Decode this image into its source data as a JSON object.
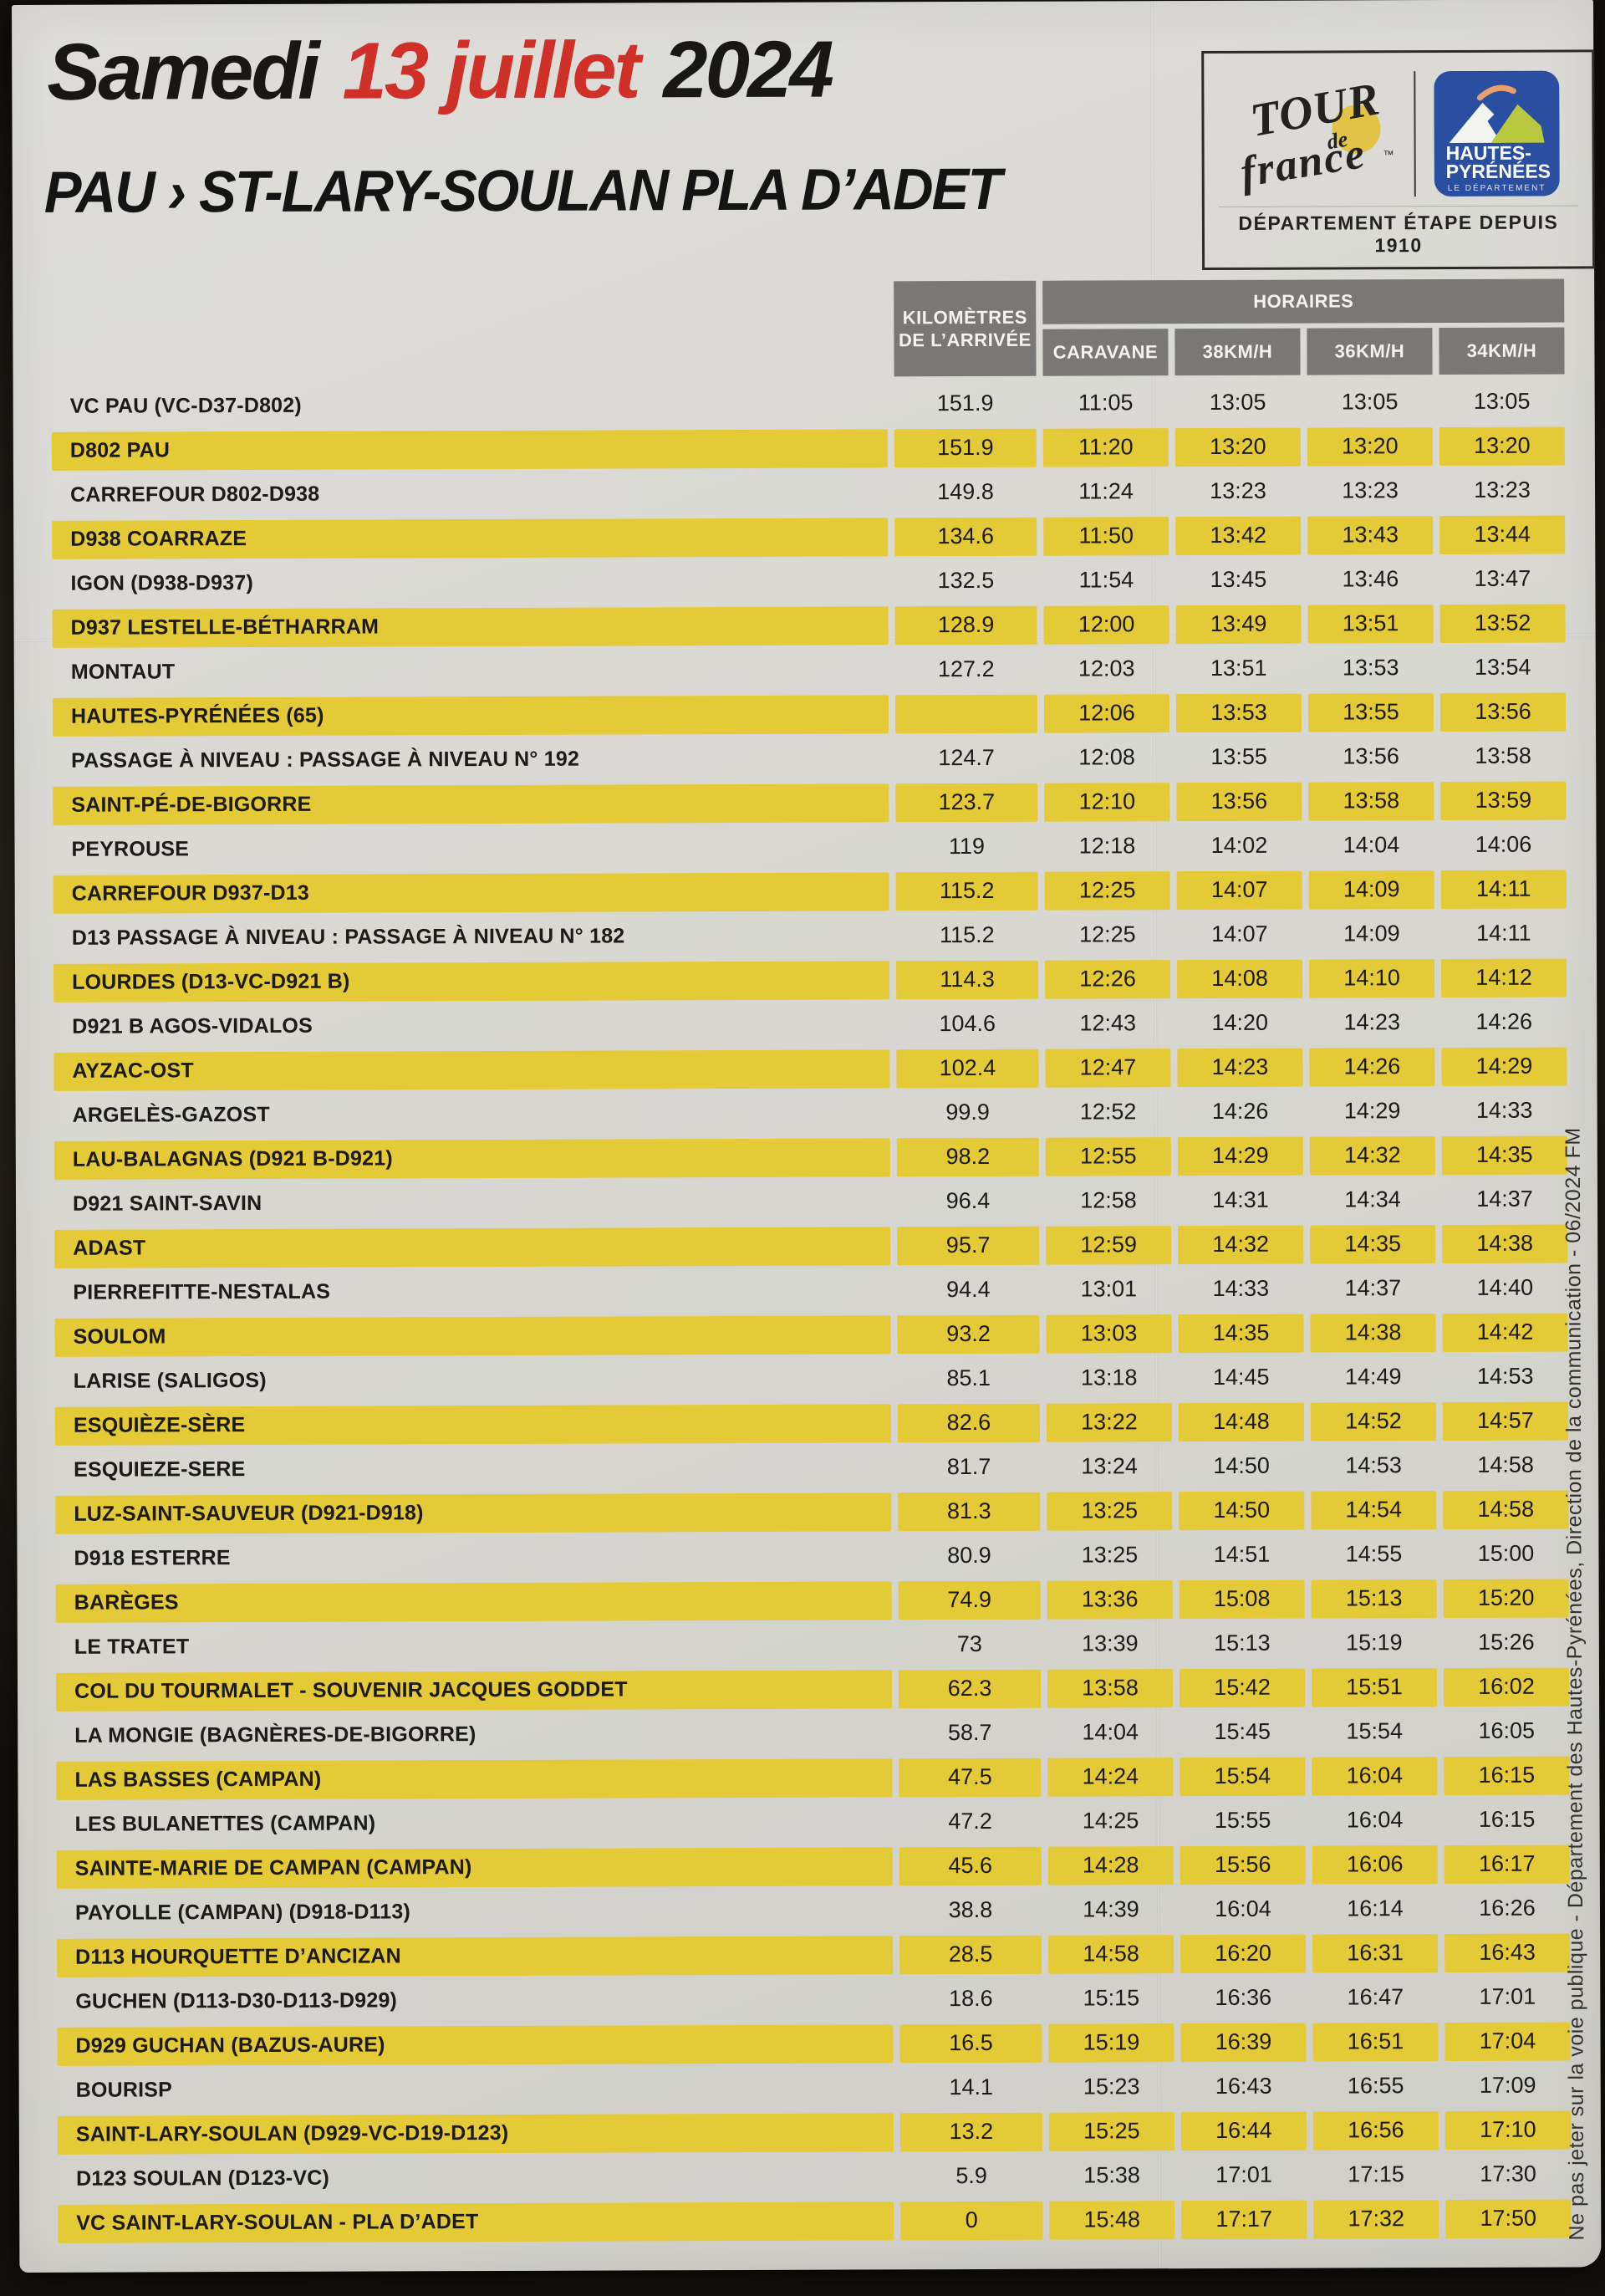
{
  "header": {
    "date_prefix": "Samedi",
    "date_red": "13 juillet",
    "date_suffix": "2024",
    "route": "PAU › ST-LARY-SOULAN PLA D’ADET"
  },
  "logos": {
    "tdf": {
      "tour": "TOUR",
      "de": "de",
      "france": "france",
      "tm": "™"
    },
    "hp": {
      "line1": "HAUTES-",
      "line2": "PYRÉNÉES",
      "line3": "LE DÉPARTEMENT"
    },
    "caption": "DÉPARTEMENT ÉTAPE DEPUIS 1910"
  },
  "table": {
    "km_header_line1": "KILOMÈTRES",
    "km_header_line2": "DE L’ARRIVÉE",
    "horaires_header": "HORAIRES",
    "speed_headers": [
      "CARAVANE",
      "38KM/H",
      "36KM/H",
      "34KM/H"
    ],
    "rows": [
      {
        "name": "VC PAU (VC-D37-D802)",
        "km": "151.9",
        "times": [
          "11:05",
          "13:05",
          "13:05",
          "13:05"
        ],
        "hl": false
      },
      {
        "name": "D802 PAU",
        "km": "151.9",
        "times": [
          "11:20",
          "13:20",
          "13:20",
          "13:20"
        ],
        "hl": true
      },
      {
        "name": "CARREFOUR D802-D938",
        "km": "149.8",
        "times": [
          "11:24",
          "13:23",
          "13:23",
          "13:23"
        ],
        "hl": false
      },
      {
        "name": "D938 COARRAZE",
        "km": "134.6",
        "times": [
          "11:50",
          "13:42",
          "13:43",
          "13:44"
        ],
        "hl": true
      },
      {
        "name": "IGON (D938-D937)",
        "km": "132.5",
        "times": [
          "11:54",
          "13:45",
          "13:46",
          "13:47"
        ],
        "hl": false
      },
      {
        "name": "D937 LESTELLE-BÉTHARRAM",
        "km": "128.9",
        "times": [
          "12:00",
          "13:49",
          "13:51",
          "13:52"
        ],
        "hl": true
      },
      {
        "name": "MONTAUT",
        "km": "127.2",
        "times": [
          "12:03",
          "13:51",
          "13:53",
          "13:54"
        ],
        "hl": false
      },
      {
        "name": "HAUTES-PYRÉNÉES (65)",
        "km": "",
        "times": [
          "12:06",
          "13:53",
          "13:55",
          "13:56"
        ],
        "hl": true
      },
      {
        "name": "PASSAGE À NIVEAU : PASSAGE À NIVEAU N° 192",
        "km": "124.7",
        "times": [
          "12:08",
          "13:55",
          "13:56",
          "13:58"
        ],
        "hl": false
      },
      {
        "name": "SAINT-PÉ-DE-BIGORRE",
        "km": "123.7",
        "times": [
          "12:10",
          "13:56",
          "13:58",
          "13:59"
        ],
        "hl": true
      },
      {
        "name": "PEYROUSE",
        "km": "119",
        "times": [
          "12:18",
          "14:02",
          "14:04",
          "14:06"
        ],
        "hl": false
      },
      {
        "name": "CARREFOUR D937-D13",
        "km": "115.2",
        "times": [
          "12:25",
          "14:07",
          "14:09",
          "14:11"
        ],
        "hl": true
      },
      {
        "name": "D13 PASSAGE À NIVEAU : PASSAGE À NIVEAU N° 182",
        "km": "115.2",
        "times": [
          "12:25",
          "14:07",
          "14:09",
          "14:11"
        ],
        "hl": false
      },
      {
        "name": "LOURDES (D13-VC-D921 B)",
        "km": "114.3",
        "times": [
          "12:26",
          "14:08",
          "14:10",
          "14:12"
        ],
        "hl": true
      },
      {
        "name": "D921 B AGOS-VIDALOS",
        "km": "104.6",
        "times": [
          "12:43",
          "14:20",
          "14:23",
          "14:26"
        ],
        "hl": false
      },
      {
        "name": "AYZAC-OST",
        "km": "102.4",
        "times": [
          "12:47",
          "14:23",
          "14:26",
          "14:29"
        ],
        "hl": true
      },
      {
        "name": "ARGELÈS-GAZOST",
        "km": "99.9",
        "times": [
          "12:52",
          "14:26",
          "14:29",
          "14:33"
        ],
        "hl": false
      },
      {
        "name": "LAU-BALAGNAS (D921 B-D921)",
        "km": "98.2",
        "times": [
          "12:55",
          "14:29",
          "14:32",
          "14:35"
        ],
        "hl": true
      },
      {
        "name": "D921 SAINT-SAVIN",
        "km": "96.4",
        "times": [
          "12:58",
          "14:31",
          "14:34",
          "14:37"
        ],
        "hl": false
      },
      {
        "name": "ADAST",
        "km": "95.7",
        "times": [
          "12:59",
          "14:32",
          "14:35",
          "14:38"
        ],
        "hl": true
      },
      {
        "name": "PIERREFITTE-NESTALAS",
        "km": "94.4",
        "times": [
          "13:01",
          "14:33",
          "14:37",
          "14:40"
        ],
        "hl": false
      },
      {
        "name": "SOULOM",
        "km": "93.2",
        "times": [
          "13:03",
          "14:35",
          "14:38",
          "14:42"
        ],
        "hl": true
      },
      {
        "name": "LARISE (SALIGOS)",
        "km": "85.1",
        "times": [
          "13:18",
          "14:45",
          "14:49",
          "14:53"
        ],
        "hl": false
      },
      {
        "name": "ESQUIÈZE-SÈRE",
        "km": "82.6",
        "times": [
          "13:22",
          "14:48",
          "14:52",
          "14:57"
        ],
        "hl": true
      },
      {
        "name": "ESQUIEZE-SERE",
        "km": "81.7",
        "times": [
          "13:24",
          "14:50",
          "14:53",
          "14:58"
        ],
        "hl": false
      },
      {
        "name": "LUZ-SAINT-SAUVEUR (D921-D918)",
        "km": "81.3",
        "times": [
          "13:25",
          "14:50",
          "14:54",
          "14:58"
        ],
        "hl": true
      },
      {
        "name": "D918 ESTERRE",
        "km": "80.9",
        "times": [
          "13:25",
          "14:51",
          "14:55",
          "15:00"
        ],
        "hl": false
      },
      {
        "name": "BARÈGES",
        "km": "74.9",
        "times": [
          "13:36",
          "15:08",
          "15:13",
          "15:20"
        ],
        "hl": true
      },
      {
        "name": "LE TRATET",
        "km": "73",
        "times": [
          "13:39",
          "15:13",
          "15:19",
          "15:26"
        ],
        "hl": false
      },
      {
        "name": "COL DU TOURMALET - SOUVENIR JACQUES GODDET",
        "km": "62.3",
        "times": [
          "13:58",
          "15:42",
          "15:51",
          "16:02"
        ],
        "hl": true
      },
      {
        "name": "LA MONGIE (BAGNÈRES-DE-BIGORRE)",
        "km": "58.7",
        "times": [
          "14:04",
          "15:45",
          "15:54",
          "16:05"
        ],
        "hl": false
      },
      {
        "name": "LAS BASSES (CAMPAN)",
        "km": "47.5",
        "times": [
          "14:24",
          "15:54",
          "16:04",
          "16:15"
        ],
        "hl": true
      },
      {
        "name": "LES BULANETTES (CAMPAN)",
        "km": "47.2",
        "times": [
          "14:25",
          "15:55",
          "16:04",
          "16:15"
        ],
        "hl": false
      },
      {
        "name": "SAINTE-MARIE DE CAMPAN (CAMPAN)",
        "km": "45.6",
        "times": [
          "14:28",
          "15:56",
          "16:06",
          "16:17"
        ],
        "hl": true
      },
      {
        "name": "PAYOLLE (CAMPAN) (D918-D113)",
        "km": "38.8",
        "times": [
          "14:39",
          "16:04",
          "16:14",
          "16:26"
        ],
        "hl": false
      },
      {
        "name": "D113 HOURQUETTE D’ANCIZAN",
        "km": "28.5",
        "times": [
          "14:58",
          "16:20",
          "16:31",
          "16:43"
        ],
        "hl": true
      },
      {
        "name": "GUCHEN (D113-D30-D113-D929)",
        "km": "18.6",
        "times": [
          "15:15",
          "16:36",
          "16:47",
          "17:01"
        ],
        "hl": false
      },
      {
        "name": "D929 GUCHAN (BAZUS-AURE)",
        "km": "16.5",
        "times": [
          "15:19",
          "16:39",
          "16:51",
          "17:04"
        ],
        "hl": true
      },
      {
        "name": "BOURISP",
        "km": "14.1",
        "times": [
          "15:23",
          "16:43",
          "16:55",
          "17:09"
        ],
        "hl": false
      },
      {
        "name": "SAINT-LARY-SOULAN (D929-VC-D19-D123)",
        "km": "13.2",
        "times": [
          "15:25",
          "16:44",
          "16:56",
          "17:10"
        ],
        "hl": true
      },
      {
        "name": "D123 SOULAN (D123-VC)",
        "km": "5.9",
        "times": [
          "15:38",
          "17:01",
          "17:15",
          "17:30"
        ],
        "hl": false
      },
      {
        "name": "VC SAINT-LARY-SOULAN - PLA D’ADET",
        "km": "0",
        "times": [
          "15:48",
          "17:17",
          "17:32",
          "17:50"
        ],
        "hl": true
      }
    ]
  },
  "footer_vertical": "Ne pas jeter sur la voie publique - Département des Hautes-Pyrénées, Direction de la communication - 06/2024 FM",
  "colors": {
    "yellow": "#e5ca37",
    "gray": "#7a7876",
    "red": "#cf3027",
    "hp_blue": "#2b4fa0",
    "paper": "#d9d8d3"
  }
}
